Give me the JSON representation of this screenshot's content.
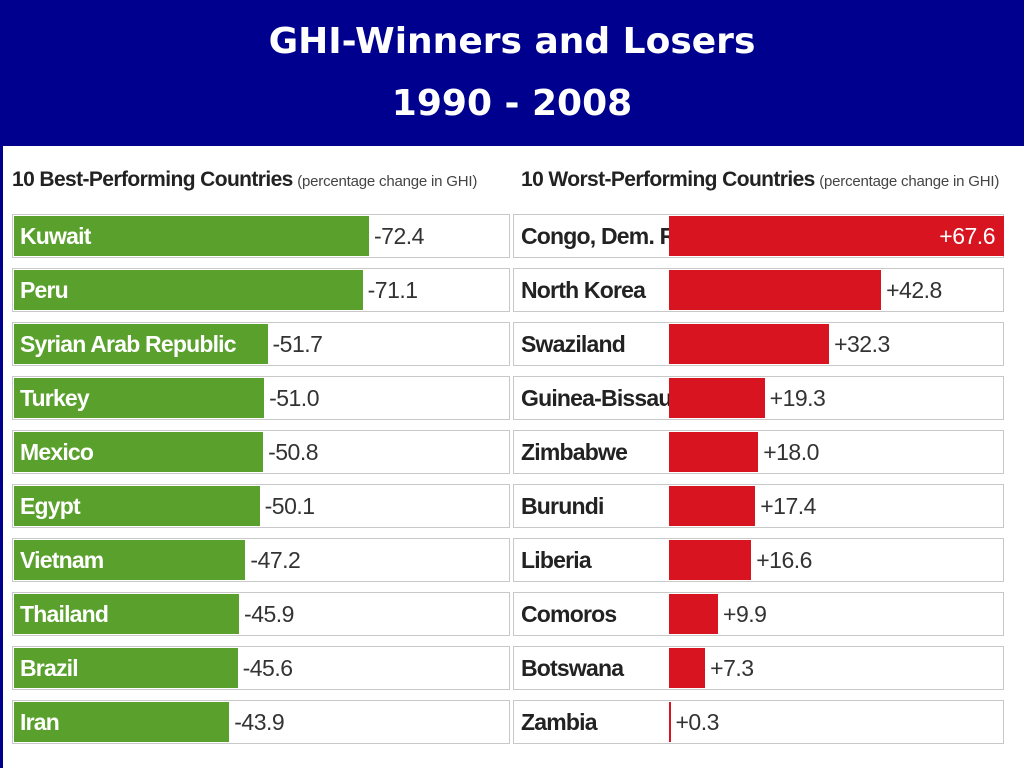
{
  "header": {
    "title_line1": "GHI-Winners and Losers",
    "title_line2": "1990 - 2008"
  },
  "chart_data": [
    {
      "type": "bar",
      "orientation": "horizontal",
      "title": "10 Best-Performing Countries",
      "subtitle": "(percentage change in GHI)",
      "bar_color": "#5aa02c",
      "categories": [
        "Kuwait",
        "Peru",
        "Syrian Arab Republic",
        "Turkey",
        "Mexico",
        "Egypt",
        "Vietnam",
        "Thailand",
        "Brazil",
        "Iran"
      ],
      "values": [
        -72.4,
        -71.1,
        -51.7,
        -51.0,
        -50.8,
        -50.1,
        -47.2,
        -45.9,
        -45.6,
        -43.9
      ],
      "value_labels": [
        "-72.4",
        "-71.1",
        "-51.7",
        "-51.0",
        "-50.8",
        "-50.1",
        "-47.2",
        "-45.9",
        "-45.6",
        "-43.9"
      ]
    },
    {
      "type": "bar",
      "orientation": "horizontal",
      "title": "10 Worst-Performing Countries",
      "subtitle": "(percentage change in GHI)",
      "bar_color": "#d7141f",
      "categories": [
        "Congo, Dem. Rep.",
        "North Korea",
        "Swaziland",
        "Guinea-Bissau",
        "Zimbabwe",
        "Burundi",
        "Liberia",
        "Comoros",
        "Botswana",
        "Zambia"
      ],
      "values": [
        67.6,
        42.8,
        32.3,
        19.3,
        18.0,
        17.4,
        16.6,
        9.9,
        7.3,
        0.3
      ],
      "value_labels": [
        "+67.6",
        "+42.8",
        "+32.3",
        "+19.3",
        "+18.0",
        "+17.4",
        "+16.6",
        "+9.9",
        "+7.3",
        "+0.3"
      ]
    }
  ]
}
